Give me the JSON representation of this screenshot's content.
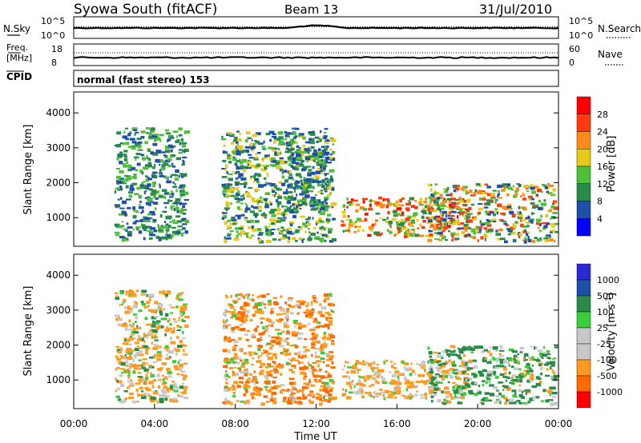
{
  "header": {
    "station": "Syowa South (fitACF)",
    "beam": "Beam 13",
    "date": "31/Jul/2010"
  },
  "noise_panel": {
    "left_label": "N.Sky",
    "right_label": "N.Search",
    "left_ticks": [
      "10^5",
      "10^0"
    ],
    "right_ticks": [
      "10^5",
      "10^0"
    ]
  },
  "freq_panel": {
    "left_label_1": "Freq.",
    "left_label_2": "[MHz]",
    "right_label": "Nave",
    "left_ticks": [
      "18",
      "8"
    ],
    "right_ticks": [
      "60",
      "0"
    ]
  },
  "cpid": {
    "label": "CPID",
    "mode": "normal (fast stereo) 153"
  },
  "colors": {
    "power_scale": [
      "#0000ff",
      "#1f4fa8",
      "#2a8a4a",
      "#4fbf3a",
      "#e8c81a",
      "#ff8a1a",
      "#ff3a10",
      "#ff0000"
    ],
    "velocity_scale": [
      "#ff0000",
      "#ff6a00",
      "#ff9a20",
      "#c8c8c8",
      "#c8c8c8",
      "#3acc3a",
      "#2a8a4a",
      "#1f4fa8",
      "#2a2ad0"
    ]
  },
  "chart_data": [
    {
      "type": "heatmap",
      "panel": "power",
      "ylabel": "Slant Range [km]",
      "yticks": [
        "1000",
        "2000",
        "3000",
        "4000"
      ],
      "ylim": [
        180,
        4600
      ],
      "xlim": [
        0,
        24
      ],
      "colorbar_label": "Power [dB]",
      "colorbar_ticks": [
        "4",
        "8",
        "12",
        "16",
        "20",
        "24",
        "28"
      ],
      "colorbar_range": [
        0,
        32
      ],
      "regions": [
        {
          "t0": 2.0,
          "t1": 5.5,
          "r0": 400,
          "r1": 3600,
          "vmin": 4,
          "vmax": 16
        },
        {
          "t0": 7.3,
          "t1": 12.8,
          "r0": 350,
          "r1": 3500,
          "vmin": 4,
          "vmax": 20
        },
        {
          "t0": 10.5,
          "t1": 12.5,
          "r0": 1200,
          "r1": 3600,
          "vmin": 4,
          "vmax": 14
        },
        {
          "t0": 13.2,
          "t1": 19.5,
          "r0": 500,
          "r1": 1600,
          "vmin": 8,
          "vmax": 30
        },
        {
          "t0": 17.5,
          "t1": 23.8,
          "r0": 350,
          "r1": 2000,
          "vmin": 4,
          "vmax": 28
        }
      ]
    },
    {
      "type": "heatmap",
      "panel": "velocity",
      "ylabel": "Slant Range [km]",
      "yticks": [
        "1000",
        "2000",
        "3000",
        "4000"
      ],
      "ylim": [
        180,
        4600
      ],
      "xlim": [
        0,
        24
      ],
      "xticks": [
        "00:00",
        "04:00",
        "08:00",
        "12:00",
        "16:00",
        "20:00",
        "00:00"
      ],
      "xlabel": "Time UT",
      "colorbar_label": "Velocity [m s",
      "colorbar_label_sup": "-1",
      "colorbar_label_end": "]",
      "colorbar_ticks": [
        "1000",
        "500",
        "100",
        "25",
        "-25",
        "-100",
        "-500",
        "-1000"
      ],
      "regions": [
        {
          "t0": 2.0,
          "t1": 5.5,
          "r0": 400,
          "r1": 3600,
          "vmin": -500,
          "vmax": 200
        },
        {
          "t0": 7.3,
          "t1": 12.8,
          "r0": 350,
          "r1": 3500,
          "vmin": -800,
          "vmax": 100
        },
        {
          "t0": 13.2,
          "t1": 19.5,
          "r0": 500,
          "r1": 1600,
          "vmin": -500,
          "vmax": 100
        },
        {
          "t0": 17.5,
          "t1": 23.8,
          "r0": 350,
          "r1": 2000,
          "vmin": -200,
          "vmax": 500
        }
      ]
    }
  ]
}
